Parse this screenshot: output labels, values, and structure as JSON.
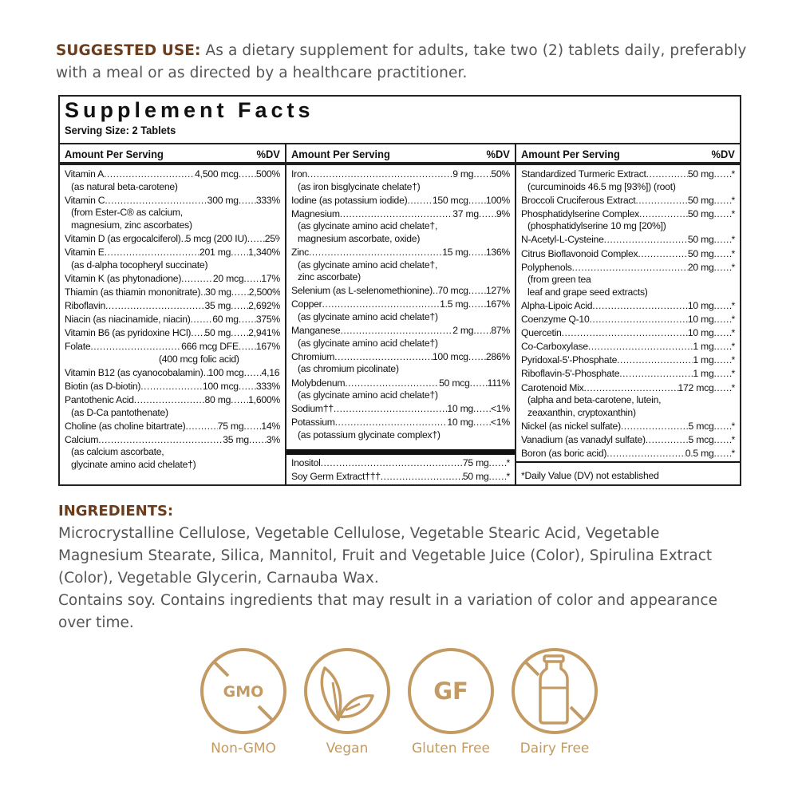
{
  "intro": {
    "label": "SUGGESTED USE:",
    "text": "As a dietary supplement for adults, take two (2) tablets daily, preferably with a meal or as directed by a healthcare practitioner."
  },
  "facts": {
    "title": "Supplement Facts",
    "serving_size": "Serving Size: 2 Tablets",
    "col_header": "Amount Per Serving",
    "dv_header": "%DV",
    "columns": [
      {
        "items": [
          {
            "name": "Vitamin A",
            "amount": "4,500 mcg",
            "dv": "500%",
            "sub": [
              "(as natural beta-carotene)"
            ]
          },
          {
            "name": "Vitamin C",
            "amount": "300 mg",
            "dv": "333%",
            "sub": [
              "(from Ester-C® as calcium,",
              "magnesium, zinc ascorbates)"
            ]
          },
          {
            "name": "Vitamin D (as ergocalciferol)",
            "amount": "5 mcg (200 IU)",
            "dv": "25%"
          },
          {
            "name": "Vitamin E",
            "amount": "201 mg",
            "dv": "1,340%",
            "sub": [
              "(as d-alpha tocopheryl succinate)"
            ]
          },
          {
            "name": "Vitamin K (as phytonadione)",
            "amount": "20 mcg",
            "dv": "17%"
          },
          {
            "name": "Thiamin (as thiamin mononitrate)",
            "amount": "30 mg",
            "dv": "2,500%"
          },
          {
            "name": "Riboflavin",
            "amount": "35 mg",
            "dv": "2,692%"
          },
          {
            "name": "Niacin (as niacinamide, niacin)",
            "amount": "60 mg",
            "dv": "375%"
          },
          {
            "name": "Vitamin B6 (as pyridoxine HCl)",
            "amount": "50 mg",
            "dv": "2,941%"
          },
          {
            "name": "Folate",
            "amount": "666 mcg DFE",
            "dv": "167%",
            "sub": [
              "(400 mcg folic acid)"
            ],
            "sub_center": true
          },
          {
            "name": "Vitamin B12 (as cyanocobalamin)",
            "amount": "100 mcg",
            "dv": "4,167%"
          },
          {
            "name": "Biotin (as D-biotin)",
            "amount": "100 mcg",
            "dv": "333%"
          },
          {
            "name": "Pantothenic Acid",
            "amount": "80 mg",
            "dv": "1,600%",
            "sub": [
              "(as D-Ca pantothenate)"
            ]
          },
          {
            "name": "Choline (as choline bitartrate)",
            "amount": "75 mg",
            "dv": "14%"
          },
          {
            "name": "Calcium",
            "amount": "35 mg",
            "dv": "3%",
            "sub": [
              "(as calcium ascorbate,",
              "glycinate amino acid chelate†)"
            ]
          }
        ]
      },
      {
        "items": [
          {
            "name": "Iron",
            "amount": "9 mg",
            "dv": "50%",
            "sub": [
              "(as iron bisglycinate chelate†)"
            ]
          },
          {
            "name": "Iodine (as potassium iodide)",
            "amount": "150 mcg",
            "dv": "100%"
          },
          {
            "name": "Magnesium",
            "amount": "37 mg",
            "dv": "9%",
            "sub": [
              "(as glycinate amino acid chelate†,",
              "magnesium ascorbate, oxide)"
            ]
          },
          {
            "name": "Zinc",
            "amount": "15 mg",
            "dv": "136%",
            "sub": [
              "(as glycinate amino acid chelate†,",
              "zinc ascorbate)"
            ]
          },
          {
            "name": "Selenium (as L-selenomethionine)",
            "amount": "70 mcg",
            "dv": "127%"
          },
          {
            "name": "Copper",
            "amount": "1.5 mg",
            "dv": "167%",
            "sub": [
              "(as glycinate amino acid chelate†)"
            ]
          },
          {
            "name": "Manganese",
            "amount": "2 mg",
            "dv": "87%",
            "sub": [
              "(as glycinate amino acid chelate†)"
            ]
          },
          {
            "name": "Chromium",
            "amount": "100 mcg",
            "dv": "286%",
            "sub": [
              "(as chromium picolinate)"
            ]
          },
          {
            "name": "Molybdenum",
            "amount": "50 mcg",
            "dv": "111%",
            "sub": [
              "(as glycinate amino acid chelate†)"
            ]
          },
          {
            "name": "Sodium††",
            "amount": "10 mg",
            "dv": "<1%"
          },
          {
            "name": "Potassium",
            "amount": "10 mg",
            "dv": "<1%",
            "sub": [
              "(as potassium glycinate complex†)"
            ]
          }
        ],
        "footer_items": [
          {
            "name": "Inositol",
            "amount": "75 mg",
            "dv": "*"
          },
          {
            "name": "Soy Germ Extract†††",
            "amount": "50 mg",
            "dv": "*"
          }
        ]
      },
      {
        "items": [
          {
            "name": "Standardized Turmeric Extract",
            "amount": "50 mg",
            "dv": "*",
            "sub": [
              "(curcuminoids 46.5 mg [93%]) (root)"
            ]
          },
          {
            "name": "Broccoli Cruciferous Extract",
            "amount": "50 mg",
            "dv": "*"
          },
          {
            "name": "Phosphatidylserine Complex",
            "amount": "50 mg",
            "dv": "*",
            "sub": [
              "(phosphatidylserine 10 mg [20%])"
            ]
          },
          {
            "name": "N-Acetyl-L-Cysteine",
            "amount": "50 mg",
            "dv": "*"
          },
          {
            "name": "Citrus Bioflavonoid Complex",
            "amount": "50 mg",
            "dv": "*"
          },
          {
            "name": "Polyphenols",
            "amount": "20 mg",
            "dv": "*",
            "sub": [
              "(from green tea",
              "leaf and grape seed extracts)"
            ]
          },
          {
            "name": "Alpha-Lipoic Acid",
            "amount": "10 mg",
            "dv": "*"
          },
          {
            "name": "Coenzyme Q-10",
            "amount": "10 mg",
            "dv": "*"
          },
          {
            "name": "Quercetin",
            "amount": "10 mg",
            "dv": "*"
          },
          {
            "name": "Co-Carboxylase",
            "amount": "1 mg",
            "dv": "*"
          },
          {
            "name": "Pyridoxal-5'-Phosphate",
            "amount": "1 mg",
            "dv": "*"
          },
          {
            "name": "Riboflavin-5'-Phosphate",
            "amount": "1 mg",
            "dv": "*"
          },
          {
            "name": "Carotenoid Mix",
            "amount": "172 mcg",
            "dv": "*",
            "sub": [
              "(alpha and beta-carotene, lutein,",
              "zeaxanthin, cryptoxanthin)"
            ]
          },
          {
            "name": "Nickel (as nickel sulfate)",
            "amount": "5 mcg",
            "dv": "*"
          },
          {
            "name": "Vanadium (as vanadyl sulfate)",
            "amount": "5 mcg",
            "dv": "*"
          },
          {
            "name": "Boron (as boric acid)",
            "amount": "0.5 mg",
            "dv": "*"
          }
        ],
        "footnote": "*Daily Value (DV) not established"
      }
    ]
  },
  "ingredients": {
    "heading": "INGREDIENTS:",
    "text": "Microcrystalline Cellulose, Vegetable Cellulose, Vegetable Stearic Acid, Vegetable Magnesium Stearate, Silica, Mannitol, Fruit and Vegetable Juice (Color), Spirulina Extract (Color), Vegetable Glycerin, Carnauba Wax.",
    "note": "Contains soy. Contains ingredients that may result in a variation of color and appearance over time."
  },
  "badges": [
    {
      "icon": "no-gmo-icon",
      "inner_text": "GMO",
      "label": "Non-GMO"
    },
    {
      "icon": "leaf-icon",
      "label": "Vegan"
    },
    {
      "icon": "gluten-free-icon",
      "inner_text": "GF",
      "label": "Gluten Free"
    },
    {
      "icon": "no-milk-bottle-icon",
      "label": "Dairy Free"
    }
  ],
  "colors": {
    "heading": "#6b3d1c",
    "body_text": "#555555",
    "badge": "#c49a63",
    "rule": "#111111"
  }
}
